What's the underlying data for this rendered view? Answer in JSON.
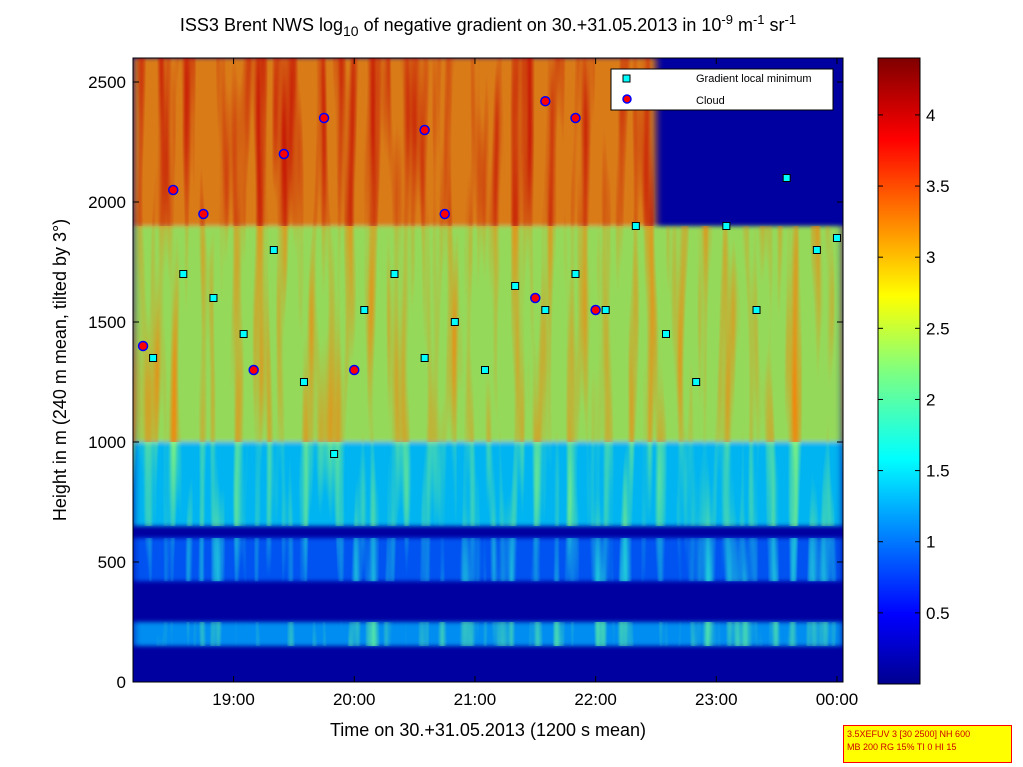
{
  "chart_data": {
    "type": "heatmap",
    "title": {
      "prefix": "ISS3 Brent NWS log",
      "sub": "10",
      "middle": " of negative gradient on 30.+31.05.2013 in 10",
      "exp1": "-9",
      "unit1": " m",
      "exp2": "-1",
      "unit2": " sr",
      "exp3": "-1"
    },
    "xlabel": "Time on 30.+31.05.2013 (1200 s mean)",
    "ylabel": "Height in m (240 m mean, tilted by 3°)",
    "xlim": [
      "18:10",
      "00:03"
    ],
    "ylim": [
      0,
      2600
    ],
    "x_ticks": [
      "19:00",
      "20:00",
      "21:00",
      "22:00",
      "23:00",
      "00:00"
    ],
    "y_ticks": [
      "0",
      "500",
      "1000",
      "1500",
      "2000",
      "2500"
    ],
    "colorbar": {
      "range": [
        0,
        4.4
      ],
      "ticks": [
        "0.5",
        "1",
        "1.5",
        "2",
        "2.5",
        "3",
        "3.5",
        "4"
      ],
      "colormap": "jet"
    },
    "legend": {
      "position": "top-right",
      "entries": [
        {
          "label": "Gradient local minimum",
          "marker": "square",
          "color": "#00ffff"
        },
        {
          "label": "Cloud",
          "marker": "circle",
          "color": "#ff0000"
        }
      ]
    },
    "layers": [
      {
        "time_range": [
          "18:10",
          "00:03"
        ],
        "height_range": [
          150,
          250
        ],
        "level": 1.2
      },
      {
        "time_range": [
          "18:10",
          "00:03"
        ],
        "height_range": [
          420,
          600
        ],
        "level": 0.9
      },
      {
        "time_range": [
          "18:10",
          "00:03"
        ],
        "height_range": [
          650,
          1000
        ],
        "level": 1.4
      },
      {
        "time_range": [
          "18:10",
          "00:03"
        ],
        "height_range": [
          1000,
          1900
        ],
        "level": 2.4
      },
      {
        "time_range": [
          "18:10",
          "22:30"
        ],
        "height_range": [
          1900,
          2600
        ],
        "level": 3.2
      }
    ],
    "gradient_minima": [
      {
        "t": "18:20",
        "h": 1350
      },
      {
        "t": "18:35",
        "h": 1700
      },
      {
        "t": "18:50",
        "h": 1600
      },
      {
        "t": "19:05",
        "h": 1450
      },
      {
        "t": "19:20",
        "h": 1800
      },
      {
        "t": "19:35",
        "h": 1250
      },
      {
        "t": "19:50",
        "h": 950
      },
      {
        "t": "20:05",
        "h": 1550
      },
      {
        "t": "20:20",
        "h": 1700
      },
      {
        "t": "20:35",
        "h": 1350
      },
      {
        "t": "20:50",
        "h": 1500
      },
      {
        "t": "21:05",
        "h": 1300
      },
      {
        "t": "21:20",
        "h": 1650
      },
      {
        "t": "21:35",
        "h": 1550
      },
      {
        "t": "21:50",
        "h": 1700
      },
      {
        "t": "22:05",
        "h": 1550
      },
      {
        "t": "22:20",
        "h": 1900
      },
      {
        "t": "22:35",
        "h": 1450
      },
      {
        "t": "22:50",
        "h": 1250
      },
      {
        "t": "23:05",
        "h": 1900
      },
      {
        "t": "23:20",
        "h": 1550
      },
      {
        "t": "23:35",
        "h": 2100
      },
      {
        "t": "23:50",
        "h": 1800
      },
      {
        "t": "00:00",
        "h": 1850
      }
    ],
    "clouds": [
      {
        "t": "18:15",
        "h": 1400
      },
      {
        "t": "18:30",
        "h": 2050
      },
      {
        "t": "18:45",
        "h": 1950
      },
      {
        "t": "19:10",
        "h": 1300
      },
      {
        "t": "19:25",
        "h": 2200
      },
      {
        "t": "19:45",
        "h": 2350
      },
      {
        "t": "20:00",
        "h": 1300
      },
      {
        "t": "20:35",
        "h": 2300
      },
      {
        "t": "20:45",
        "h": 1950
      },
      {
        "t": "21:30",
        "h": 1600
      },
      {
        "t": "21:35",
        "h": 2420
      },
      {
        "t": "21:50",
        "h": 2350
      },
      {
        "t": "22:00",
        "h": 1550
      }
    ]
  },
  "info_box": {
    "line1": "3.5XEFUV 3 [30 2500] NH 600",
    "line2": "MB 200 RG 15% TI 0 HI 15"
  }
}
